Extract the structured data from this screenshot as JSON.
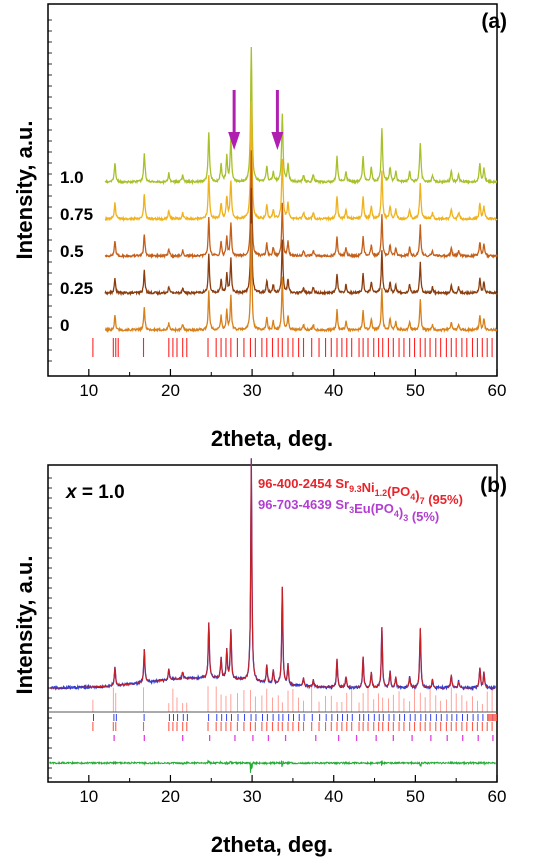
{
  "chart_data": [
    {
      "type": "line",
      "panel_label": "(a)",
      "xlabel": "2theta, deg.",
      "ylabel": "Intensity, a.u.",
      "xlim": [
        5,
        60
      ],
      "xticks": [
        "10",
        "20",
        "30",
        "40",
        "50",
        "60"
      ],
      "series": [
        {
          "name": "0",
          "color": "#d8801a",
          "baseline": 0.0
        },
        {
          "name": "0.25",
          "color": "#8a3d0e",
          "baseline": 0.13
        },
        {
          "name": "0.5",
          "color": "#c45f1a",
          "baseline": 0.26
        },
        {
          "name": "0.75",
          "color": "#f0b21c",
          "baseline": 0.39
        },
        {
          "name": "1.0",
          "color": "#a8c02a",
          "baseline": 0.52
        }
      ],
      "peaks": [
        [
          13.2,
          0.1
        ],
        [
          16.8,
          0.16
        ],
        [
          19.8,
          0.05
        ],
        [
          21.5,
          0.04
        ],
        [
          24.7,
          0.28
        ],
        [
          26.2,
          0.1
        ],
        [
          26.9,
          0.14
        ],
        [
          27.4,
          0.24
        ],
        [
          29.9,
          0.75
        ],
        [
          31.8,
          0.09
        ],
        [
          32.6,
          0.06
        ],
        [
          33.7,
          0.38
        ],
        [
          34.4,
          0.1
        ],
        [
          36.3,
          0.04
        ],
        [
          37.5,
          0.04
        ],
        [
          40.4,
          0.14
        ],
        [
          41.5,
          0.06
        ],
        [
          43.6,
          0.14
        ],
        [
          44.6,
          0.08
        ],
        [
          45.9,
          0.3
        ],
        [
          46.9,
          0.08
        ],
        [
          47.6,
          0.06
        ],
        [
          49.3,
          0.06
        ],
        [
          50.6,
          0.22
        ],
        [
          52.1,
          0.04
        ],
        [
          54.4,
          0.06
        ],
        [
          55.3,
          0.04
        ],
        [
          57.9,
          0.1
        ],
        [
          58.4,
          0.08
        ]
      ],
      "arrows_at": [
        27.8,
        33.1
      ],
      "reference_ticks": [
        10.5,
        13.0,
        13.3,
        13.6,
        16.7,
        19.8,
        20.3,
        20.8,
        21.5,
        22.0,
        24.6,
        25.6,
        26.2,
        26.8,
        27.4,
        28.2,
        29.0,
        29.8,
        30.4,
        31.2,
        31.8,
        32.5,
        33.2,
        33.7,
        34.4,
        35.0,
        35.7,
        36.3,
        37.3,
        38.2,
        39.0,
        39.7,
        40.4,
        41.0,
        41.6,
        42.2,
        43.1,
        43.6,
        44.2,
        44.9,
        45.5,
        46.0,
        46.7,
        47.3,
        48.0,
        48.6,
        49.3,
        49.9,
        50.6,
        51.2,
        51.8,
        52.5,
        53.1,
        53.8,
        54.4,
        55.0,
        55.7,
        56.3,
        57.0,
        57.6,
        58.2,
        58.8,
        59.4
      ]
    },
    {
      "type": "line",
      "panel_label": "(b)",
      "annotation_x": "x",
      "annotation_eq": " = 1.0",
      "xlabel": "2theta, deg.",
      "ylabel": "Intensity, a.u.",
      "xlim": [
        5,
        60
      ],
      "xticks": [
        "10",
        "20",
        "30",
        "40",
        "50",
        "60"
      ],
      "legend": [
        {
          "prefix": "96-400-2454 Sr",
          "s1": "9.3",
          "mid": "Ni",
          "s2": "1.2",
          "mid2": "(PO",
          "s3": "4",
          "mid3": ")",
          "s4": "7",
          "suffix": " (95%)",
          "color": "#e8232a"
        },
        {
          "prefix": "96-703-4639 Sr",
          "s1": "3",
          "mid": "Eu(PO",
          "s2": "4",
          "mid2": ")",
          "s3": "3",
          "mid3": "",
          "s4": "",
          "suffix": " (5%)",
          "color": "#b23ed1"
        }
      ],
      "series": [
        {
          "name": "observed",
          "color": "#2233cc"
        },
        {
          "name": "calculated",
          "color": "#cc2020"
        },
        {
          "name": "difference",
          "color": "#22aa33"
        }
      ],
      "colors": {
        "bragg_main": "#ff5a4a",
        "bragg_second": "#e040e0",
        "bragg_blue": "#3344ee",
        "background_line": "#555555"
      },
      "peaks": [
        [
          13.2,
          0.08
        ],
        [
          16.8,
          0.15
        ],
        [
          19.8,
          0.05
        ],
        [
          21.5,
          0.03
        ],
        [
          24.7,
          0.25
        ],
        [
          26.2,
          0.09
        ],
        [
          26.9,
          0.13
        ],
        [
          27.4,
          0.22
        ],
        [
          29.9,
          1.0
        ],
        [
          31.8,
          0.08
        ],
        [
          32.6,
          0.06
        ],
        [
          33.7,
          0.44
        ],
        [
          34.4,
          0.09
        ],
        [
          36.3,
          0.04
        ],
        [
          37.5,
          0.03
        ],
        [
          40.4,
          0.13
        ],
        [
          41.5,
          0.05
        ],
        [
          43.6,
          0.14
        ],
        [
          44.6,
          0.07
        ],
        [
          45.9,
          0.27
        ],
        [
          46.9,
          0.07
        ],
        [
          47.6,
          0.05
        ],
        [
          49.3,
          0.05
        ],
        [
          50.6,
          0.27
        ],
        [
          52.1,
          0.04
        ],
        [
          54.4,
          0.06
        ],
        [
          55.3,
          0.03
        ],
        [
          57.9,
          0.09
        ],
        [
          58.4,
          0.07
        ]
      ],
      "bragg_main": [
        10.5,
        13.0,
        13.3,
        16.7,
        19.8,
        20.3,
        20.8,
        21.5,
        22.0,
        24.6,
        25.6,
        26.2,
        26.8,
        27.4,
        28.2,
        29.0,
        29.8,
        30.4,
        31.2,
        31.8,
        32.5,
        33.2,
        33.7,
        34.4,
        35.0,
        35.7,
        36.3,
        37.3,
        38.2,
        39.0,
        39.7,
        40.4,
        41.0,
        41.6,
        42.2,
        43.1,
        43.6,
        44.2,
        44.9,
        45.5,
        46.0,
        46.7,
        47.3,
        48.0,
        48.6,
        49.3,
        49.9,
        50.6,
        51.2,
        51.8,
        52.5,
        53.1,
        53.8,
        54.4,
        55.0,
        55.7,
        56.3,
        57.0,
        57.6,
        58.2,
        58.8,
        59.4
      ],
      "bragg_second": [
        13.1,
        16.8,
        21.5,
        24.8,
        27.9,
        30.1,
        32.0,
        34.1,
        37.8,
        40.6,
        42.8,
        45.2,
        47.3,
        49.6,
        51.9,
        53.9,
        55.8,
        57.7,
        59.5
      ]
    }
  ]
}
